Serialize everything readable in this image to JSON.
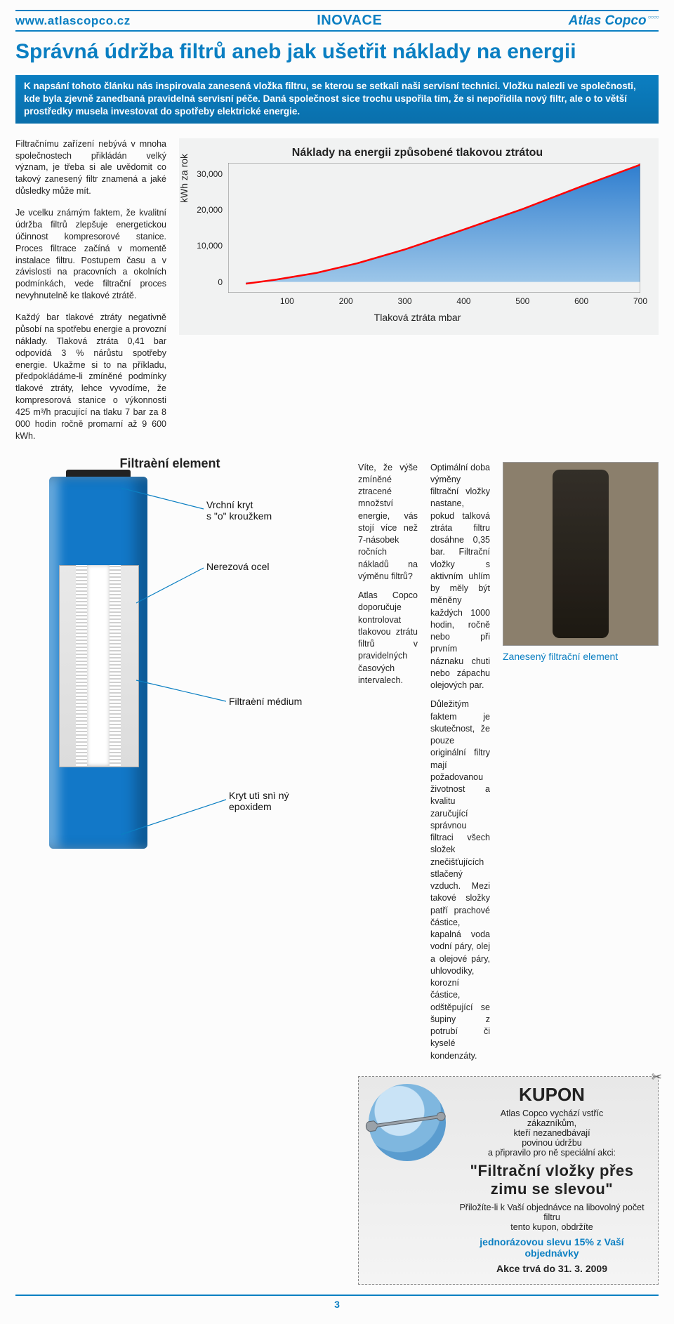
{
  "header": {
    "url": "www.atlascopco.cz",
    "section": "INOVACE",
    "brand": "Atlas Copco"
  },
  "title": "Správná údržba filtrů aneb jak ušetřit náklady na energii",
  "intro": "K napsání tohoto článku nás inspirovala zanesená vložka filtru, se kterou se setkali naši servisní technici. Vložku nalezli ve společnosti, kde byla zjevně zanedbaná pravidelná servisní péče. Daná společnost sice trochu uspořila tím, že si nepořídila nový filtr, ale o to větší prostředky musela investovat do spotřeby elektrické energie.",
  "left_paragraphs": {
    "p1": "Filtračnímu zařízení nebývá v mnoha společnostech přikládán velký význam, je třeba si ale uvědomit co takový zanesený filtr znamená a jaké důsledky může mít.",
    "p2": "Je vcelku známým faktem, že kvalitní údržba filtrů zlepšuje energetickou účinnost kompresorové stanice. Proces filtrace začíná v momentě instalace filtru. Postupem času a v závislosti na pracovních a okolních podmínkách, vede filtrační proces nevyhnutelně ke tlakové ztrátě.",
    "p3": "Každý bar tlakové ztráty negativně působí na spotřebu energie a provozní náklady. Tlaková ztráta 0,41 bar odpovídá 3 % nárůstu spotřeby energie. Ukažme si to na příkladu, předpokládáme-li zmíněné podmínky tlakové ztráty, lehce vyvodíme, že kompresorová stanice o výkonnosti 425 m³/h pracující na tlaku 7 bar za 8 000 hodin ročně promarní až 9 600 kWh."
  },
  "mid": {
    "c1": "Víte, že výše zmíněné ztracené množství energie, vás stojí více než 7-násobek ročních nákladů na výměnu filtrů?",
    "c1b": "Atlas Copco doporučuje kontrolovat tlakovou ztrátu filtrů v pravidelných časových intervalech.",
    "c2": "Optimální doba výměny filtrační vložky nastane, pokud talková ztráta filtru dosáhne 0,35 bar. Filtrační vložky s aktivním uhlím by měly být měněny každých 1000 hodin, ročně nebo při prvním náznaku chuti nebo zápachu olejových par.",
    "c3": "Důležitým faktem je skutečnost, že pouze originální filtry mají požadovanou životnost a kvalitu zaručující správnou filtraci všech složek znečišťujících stlačený vzduch. Mezi takové složky patří prachové částice, kapalná voda vodní páry, olej a olejové páry, uhlovodíky, korozní částice, odštěpující se šupiny z potrubí či kyselé kondenzáty."
  },
  "chart": {
    "title": "Náklady na energii způsobené tlakovou ztrátou",
    "xlabel": "Tlaková ztráta mbar",
    "ylabel": "kWh za rok",
    "xlim": [
      0,
      700
    ],
    "ylim": [
      -3000,
      33000
    ],
    "xticks": [
      100,
      200,
      300,
      400,
      500,
      600,
      700
    ],
    "yticks": [
      0,
      10000,
      20000,
      30000
    ],
    "yticklabels": [
      "0",
      "10,000",
      "20,000",
      "30,000"
    ],
    "line_color": "#ff0000",
    "fill_top": "#2f7ecf",
    "fill_bottom": "#9ec7e9",
    "background": "#f1f2f2",
    "border": "#808080",
    "points_x": [
      30,
      80,
      150,
      220,
      300,
      400,
      500,
      600,
      700
    ],
    "points_y": [
      -500,
      600,
      2500,
      5200,
      9000,
      14500,
      20200,
      26500,
      32500
    ]
  },
  "filter": {
    "heading": "Filtraèní element",
    "callouts": {
      "top": "Vrchní kryt\ns \"o\" kroužkem",
      "steel": "Nerezová ocel",
      "medium": "Filtraèní médium",
      "bottom": "Kryt utì snì ný\nepoxidem"
    }
  },
  "dirty_caption": "Zanesený filtrační element",
  "coupon": {
    "title": "KUPON",
    "lead1": "Atlas Copco vychází vstříc",
    "lead2": "zákazníkům,",
    "lead3": "kteří nezanedbávají",
    "lead4": "povinou údržbu",
    "lead5": "a připravilo pro ně speciální akci:",
    "big": "\"Filtrační vložky přes zimu se slevou\"",
    "line1": "Přiložíte-li k Vaší objednávce na libovolný počet filtru",
    "line2": "tento kupon, obdržíte",
    "discount": "jednorázovou slevu 15% z Vaší objednávky",
    "valid": "Akce trvá do 31. 3. 2009"
  },
  "page_number": "3"
}
